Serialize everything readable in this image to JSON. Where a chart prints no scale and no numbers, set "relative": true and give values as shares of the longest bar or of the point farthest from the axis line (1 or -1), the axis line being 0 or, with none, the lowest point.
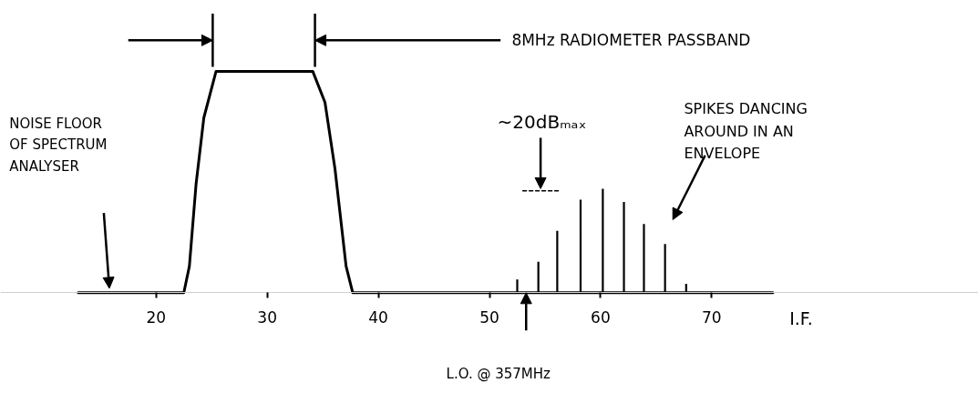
{
  "chart_data": {
    "type": "line",
    "relative": true,
    "xlabel": "I.F.",
    "xlim": [
      6,
      94
    ],
    "xticks": [
      20,
      30,
      40,
      50,
      60,
      70
    ],
    "series": [
      {
        "color": "#000000",
        "x": [
          13,
          22.5,
          23.0,
          23.6,
          24.3,
          25.4,
          34.1,
          35.2,
          36.1,
          37.1,
          37.7,
          75.5
        ],
        "values": [
          0,
          0,
          0.12,
          0.49,
          0.79,
          1,
          1,
          0.86,
          0.56,
          0.12,
          0,
          0
        ]
      },
      {
        "type": "bar",
        "color": "#000000",
        "x": [
          52.5,
          54.4,
          56.1,
          58.2,
          60.2,
          62.1,
          63.9,
          65.8,
          67.7
        ],
        "values": [
          0.06,
          0.14,
          0.28,
          0.42,
          0.47,
          0.41,
          0.31,
          0.22,
          0.04
        ]
      },
      {
        "color": "#000000",
        "line_style": "dashed",
        "x": [
          53,
          56.2
        ],
        "values": [
          0.46,
          0.46
        ]
      }
    ],
    "annotations": [
      "8MHz RADIOMETER PASSBAND",
      "~20dBₘₐₓ",
      "NOISE FLOOR OF SPECTRUM ANALYSER",
      "SPIKES DANCING AROUND IN AN ENVELOPE",
      "L.O. @ 357MHz"
    ]
  }
}
